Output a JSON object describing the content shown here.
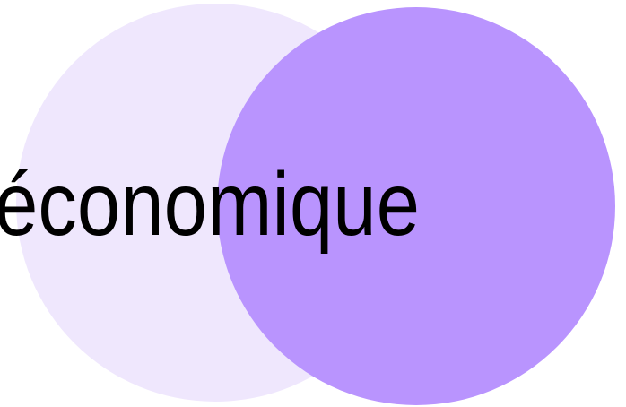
{
  "label": "économique"
}
